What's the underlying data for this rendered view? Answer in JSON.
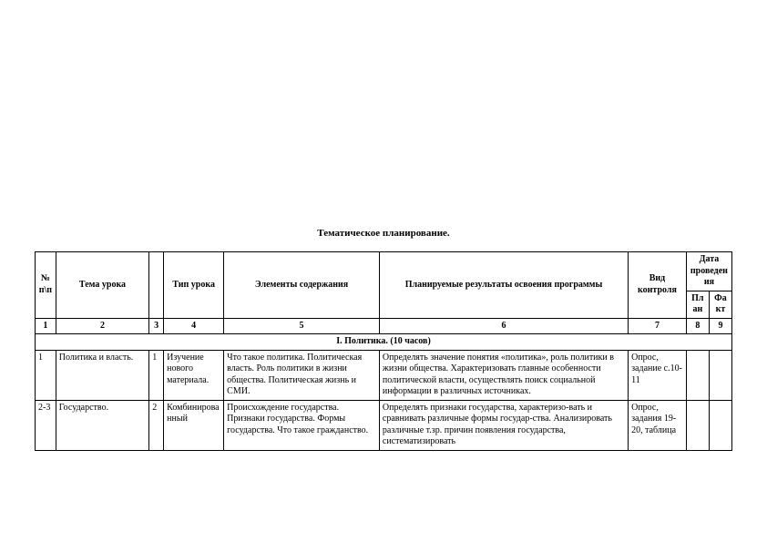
{
  "title": "Тематическое планирование.",
  "headers": {
    "col1": "№ п\\п",
    "col2": "Тема урока",
    "col3": "",
    "col4": "Тип урока",
    "col5": "Элементы содержания",
    "col6": "Планируемые результаты освоения программы",
    "col7": "Вид контроля",
    "col8_top": "Дата проведения",
    "col8": "План",
    "col9": "Факт"
  },
  "colnums": [
    "1",
    "2",
    "3",
    "4",
    "5",
    "6",
    "7",
    "8",
    "9"
  ],
  "section": "I. Политика. (10 часов)",
  "rows": [
    {
      "n": "1",
      "topic": "Политика и власть.",
      "h": "1",
      "type": "Изучение нового материала.",
      "elements": "Что такое политика. Политическая власть. Роль политики в жизни общества. Политическая жизнь и СМИ.",
      "results": "Определять значение понятия «политика», роль политики в жизни общества. Характеризовать главные особенности политической власти, осуществлять поиск социальной информации в различных источниках.",
      "control": "Опрос, задание с.10-11",
      "plan": "",
      "fact": ""
    },
    {
      "n": "2-3",
      "topic": "Государство.",
      "h": "2",
      "type": "Комбинированный",
      "elements": "Происхождение государства. Признаки государства. Формы государства. Что такое гражданство.",
      "results": "Определять признаки государства, характеризо-вать и сравнивать различные формы государ-ства. Анализировать различные т.зр. причин появления государства, систематизировать",
      "control": "Опрос, задания 19-20, таблица",
      "plan": "",
      "fact": ""
    }
  ]
}
